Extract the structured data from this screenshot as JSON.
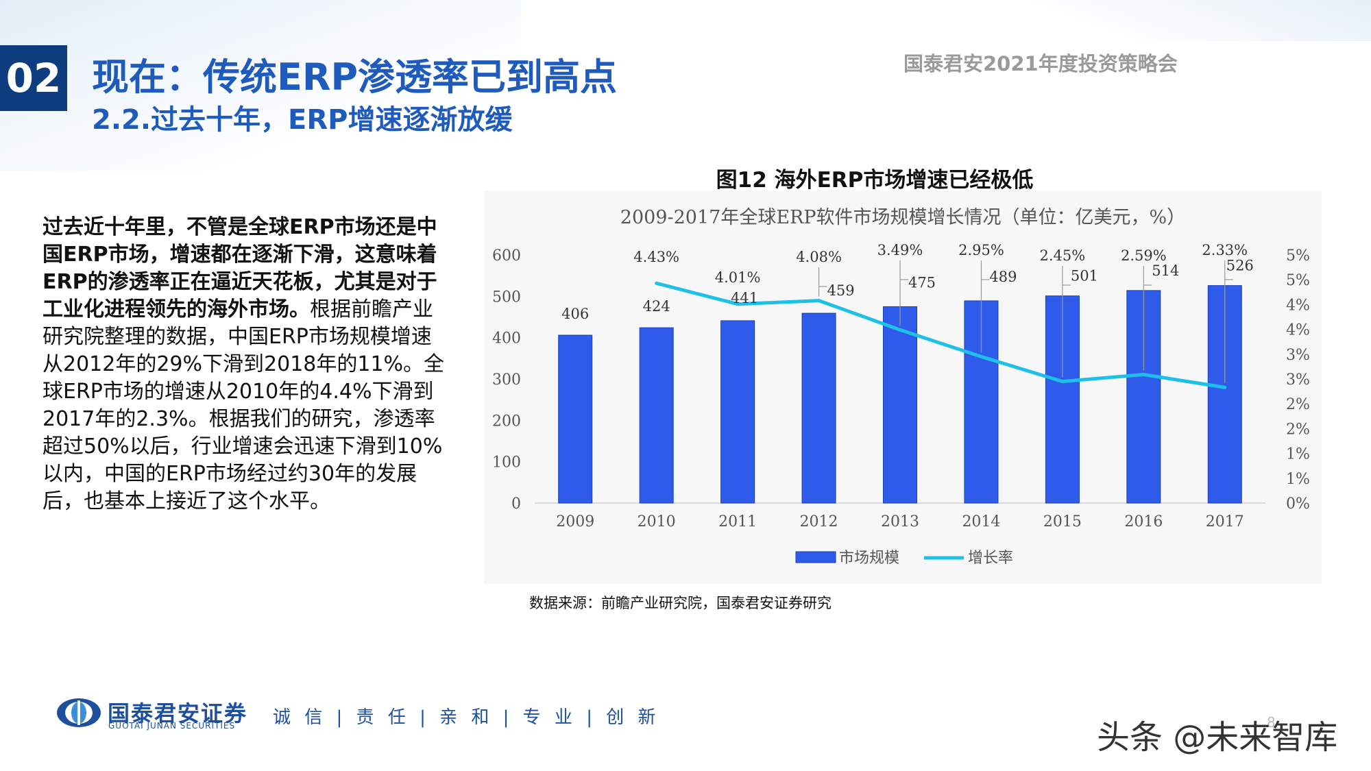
{
  "header": {
    "section_number": "02",
    "title": "现在：传统ERP渗透率已到高点",
    "subtitle": "2.2.过去十年，ERP增速逐渐放缓",
    "event_name": "国泰君安2021年度投资策略会"
  },
  "body": {
    "paragraph_bold": "过去近十年里，不管是全球ERP市场还是中国ERP市场，增速都在逐渐下滑，这意味着ERP的渗透率正在逼近天花板，尤其是对于工业化进程领先的海外市场。",
    "paragraph_rest": "根据前瞻产业研究院整理的数据，中国ERP市场规模增速从2012年的29%下滑到2018年的11%。全球ERP市场的增速从2010年的4.4%下滑到2017年的2.3%。根据我们的研究，渗透率超过50%以后，行业增速会迅速下滑到10%以内，中国的ERP市场经过约30年的发展后，也基本上接近了这个水平。"
  },
  "figure": {
    "caption": "图12 海外ERP市场增速已经极低",
    "source": "数据来源：前瞻产业研究院，国泰君安证券研究"
  },
  "chart_data": {
    "type": "bar",
    "title": "2009-2017年全球ERP软件市场规模增长情况（单位：亿美元，%）",
    "categories": [
      "2009",
      "2010",
      "2011",
      "2012",
      "2013",
      "2014",
      "2015",
      "2016",
      "2017"
    ],
    "series": [
      {
        "name": "市场规模",
        "type": "bar",
        "axis": "left",
        "values": [
          406,
          424,
          441,
          459,
          475,
          489,
          501,
          514,
          526
        ],
        "labels": [
          "406",
          "424",
          "441",
          "459",
          "475",
          "489",
          "501",
          "514",
          "526"
        ],
        "color": "#2f5bea"
      },
      {
        "name": "增长率",
        "type": "line",
        "axis": "right",
        "values": [
          null,
          4.43,
          4.01,
          4.08,
          3.49,
          2.95,
          2.45,
          2.59,
          2.33
        ],
        "labels": [
          "",
          "4.43%",
          "4.01%",
          "4.08%",
          "3.49%",
          "2.95%",
          "2.45%",
          "2.59%",
          "2.33%"
        ],
        "color": "#1ec0e8"
      }
    ],
    "y_left": {
      "min": 0,
      "max": 600,
      "ticks": [
        "0",
        "100",
        "200",
        "300",
        "400",
        "500",
        "600"
      ]
    },
    "y_right": {
      "min": 0,
      "max": 5,
      "ticks": [
        "0%",
        "1%",
        "1%",
        "2%",
        "2%",
        "3%",
        "3%",
        "4%",
        "4%",
        "5%",
        "5%"
      ]
    },
    "grid": false,
    "legend": "bottom"
  },
  "footer": {
    "logo_cn": "国泰君安证券",
    "logo_en": "GUOTAI JUNAN SECURITIES",
    "slogan": "诚 信 | 责 任 | 亲 和 | 专 业 | 创 新",
    "page_number": "8",
    "watermark": "头条 @未来智库"
  }
}
